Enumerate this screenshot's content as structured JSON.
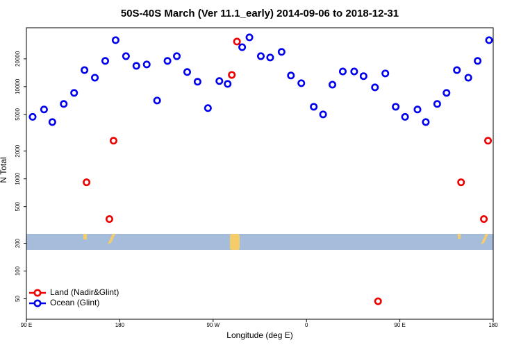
{
  "chart_data": {
    "type": "scatter",
    "title": "50S-40S March (Ver 11.1_early)   2014-09-06 to 2018-12-31",
    "x_label": "Longitude (deg E)",
    "y_label": "N Total",
    "log_y": true,
    "legend": "bottom-left",
    "xlim": [
      90,
      540
    ],
    "ylim": [
      30,
      43500
    ],
    "xticks": [
      {
        "value": 90,
        "label": "90 E"
      },
      {
        "value": 180,
        "label": "180"
      },
      {
        "value": 270,
        "label": "90 W"
      },
      {
        "value": 360,
        "label": "0"
      },
      {
        "value": 450,
        "label": "90 E"
      },
      {
        "value": 540,
        "label": "180"
      }
    ],
    "yticks": [
      50,
      100,
      200,
      500,
      1000,
      2000,
      5000,
      10000,
      20000
    ],
    "series": [
      {
        "name": "Land (Nadir&Glint)",
        "color": "#ee0000",
        "x": [
          148,
          170,
          174,
          288,
          293,
          429,
          509,
          531,
          535
        ],
        "values": [
          917,
          366,
          2590,
          13400,
          30800,
          47,
          917,
          366,
          2590
        ]
      },
      {
        "name": "Ocean (Glint)",
        "color": "#0000ee",
        "x": [
          96,
          107,
          115,
          126,
          136,
          146,
          156,
          166,
          176,
          186,
          196,
          206,
          216,
          226,
          235,
          245,
          255,
          265,
          276,
          284,
          298,
          305,
          316,
          325,
          336,
          345,
          355,
          367,
          376,
          385,
          395,
          406,
          415,
          426,
          436,
          446,
          455,
          467,
          475,
          486,
          495,
          505,
          516,
          525,
          536
        ],
        "values": [
          4700,
          5650,
          4130,
          6490,
          8550,
          15100,
          12500,
          19000,
          31900,
          21400,
          16800,
          17400,
          7070,
          19000,
          21400,
          14400,
          11300,
          5850,
          11500,
          10700,
          26800,
          34200,
          21400,
          20700,
          23800,
          13200,
          10900,
          6050,
          5000,
          10500,
          14600,
          14600,
          13000,
          9820,
          13900,
          6050,
          4700,
          5650,
          4130,
          6490,
          8550,
          15100,
          12500,
          19000,
          31900
        ]
      }
    ]
  }
}
